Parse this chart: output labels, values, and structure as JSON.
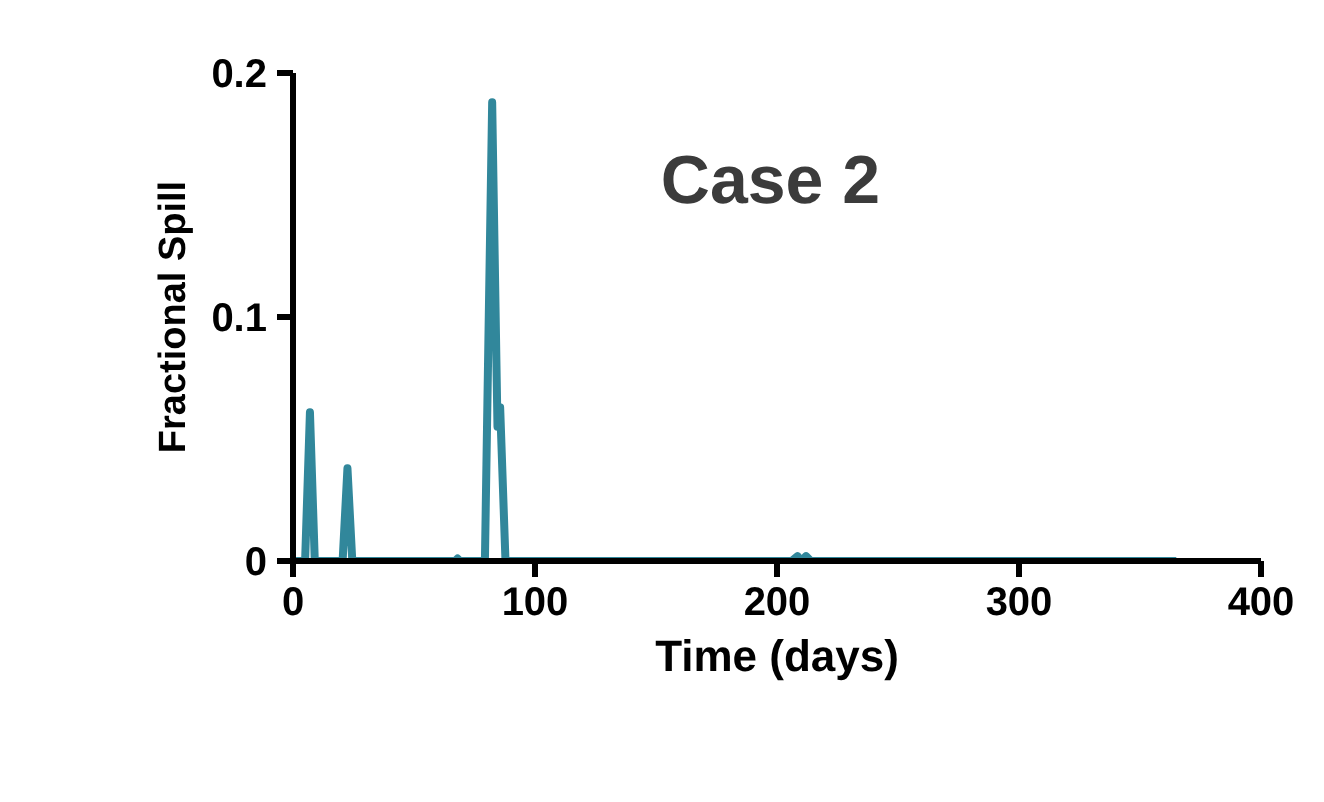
{
  "chart_data": {
    "type": "line",
    "xlabel": "Time (days)",
    "ylabel": "Fractional Spill",
    "annotations": [
      "Case 2"
    ],
    "x": [
      0,
      5,
      7,
      9,
      20.5,
      22.5,
      24.5,
      67,
      68,
      69,
      79.3,
      82.3,
      84.5,
      85.6,
      87.8,
      206,
      208.5,
      210,
      212,
      214,
      365
    ],
    "series": [
      {
        "color": "#31879b",
        "values": [
          0,
          0,
          0.061,
          0,
          0,
          0.038,
          0,
          0,
          0.001,
          0,
          0,
          0.188,
          0.055,
          0.063,
          0,
          0,
          0.002,
          0,
          0.002,
          0,
          0
        ]
      }
    ],
    "xlim": [
      0,
      400
    ],
    "ylim": [
      0,
      0.2
    ],
    "xticks": [
      0,
      100,
      200,
      300,
      400
    ],
    "yticks": [
      0,
      0.1,
      0.2
    ],
    "grid": false,
    "marker": "none",
    "line_style": "solid"
  }
}
